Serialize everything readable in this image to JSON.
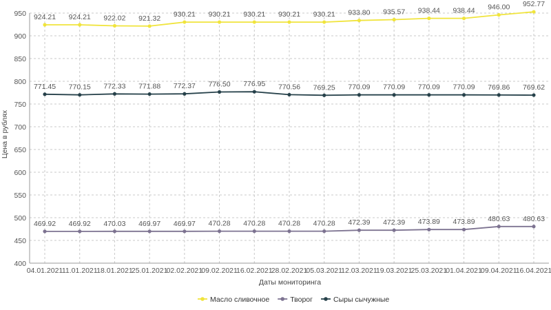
{
  "chart_data": {
    "type": "line",
    "xlabel": "Даты мониторинга",
    "ylabel": "Цена в рублях",
    "ylim": [
      400,
      950
    ],
    "yticks": [
      400,
      450,
      500,
      550,
      600,
      650,
      700,
      750,
      800,
      850,
      900,
      950
    ],
    "grid": true,
    "legend_position": "bottom",
    "categories": [
      "04.01.2021",
      "11.01.2021",
      "18.01.2021",
      "25.01.2021",
      "02.02.2021",
      "09.02.2021",
      "16.02.2021",
      "28.02.2021",
      "05.03.2021",
      "12.03.2021",
      "19.03.2021",
      "25.03.2021",
      "01.04.2021",
      "09.04.2021",
      "16.04.2021"
    ],
    "series": [
      {
        "name": "Масло сливочное",
        "color": "#f0e43c",
        "values": [
          924.21,
          924.21,
          922.02,
          921.32,
          930.21,
          930.21,
          930.21,
          930.21,
          930.21,
          933.8,
          935.57,
          938.44,
          938.44,
          946.0,
          952.77
        ],
        "labels": [
          "924.21",
          "924.21",
          "922.02",
          "921.32",
          "930.21",
          "930.21",
          "930.21",
          "930.21",
          "930.21",
          "933.80",
          "935.57",
          "938.44",
          "938.44",
          "946.00",
          "952.77"
        ]
      },
      {
        "name": "Творог",
        "color": "#7d7391",
        "values": [
          469.92,
          469.92,
          470.03,
          469.97,
          469.97,
          470.28,
          470.28,
          470.28,
          470.28,
          472.39,
          472.39,
          473.89,
          473.89,
          480.63,
          480.63
        ],
        "labels": [
          "469.92",
          "469.92",
          "470.03",
          "469.97",
          "469.97",
          "470.28",
          "470.28",
          "470.28",
          "470.28",
          "472.39",
          "472.39",
          "473.89",
          "473.89",
          "480.63",
          "480.63"
        ]
      },
      {
        "name": "Сыры сычужные",
        "color": "#26414a",
        "values": [
          771.45,
          770.15,
          772.33,
          771.88,
          772.37,
          776.5,
          776.95,
          770.56,
          769.25,
          770.09,
          770.09,
          770.09,
          770.09,
          769.86,
          769.62
        ],
        "labels": [
          "771.45",
          "770.15",
          "772.33",
          "771.88",
          "772.37",
          "776.50",
          "776.95",
          "770.56",
          "769.25",
          "770.09",
          "770.09",
          "770.09",
          "770.09",
          "769.86",
          "769.62"
        ]
      }
    ]
  }
}
